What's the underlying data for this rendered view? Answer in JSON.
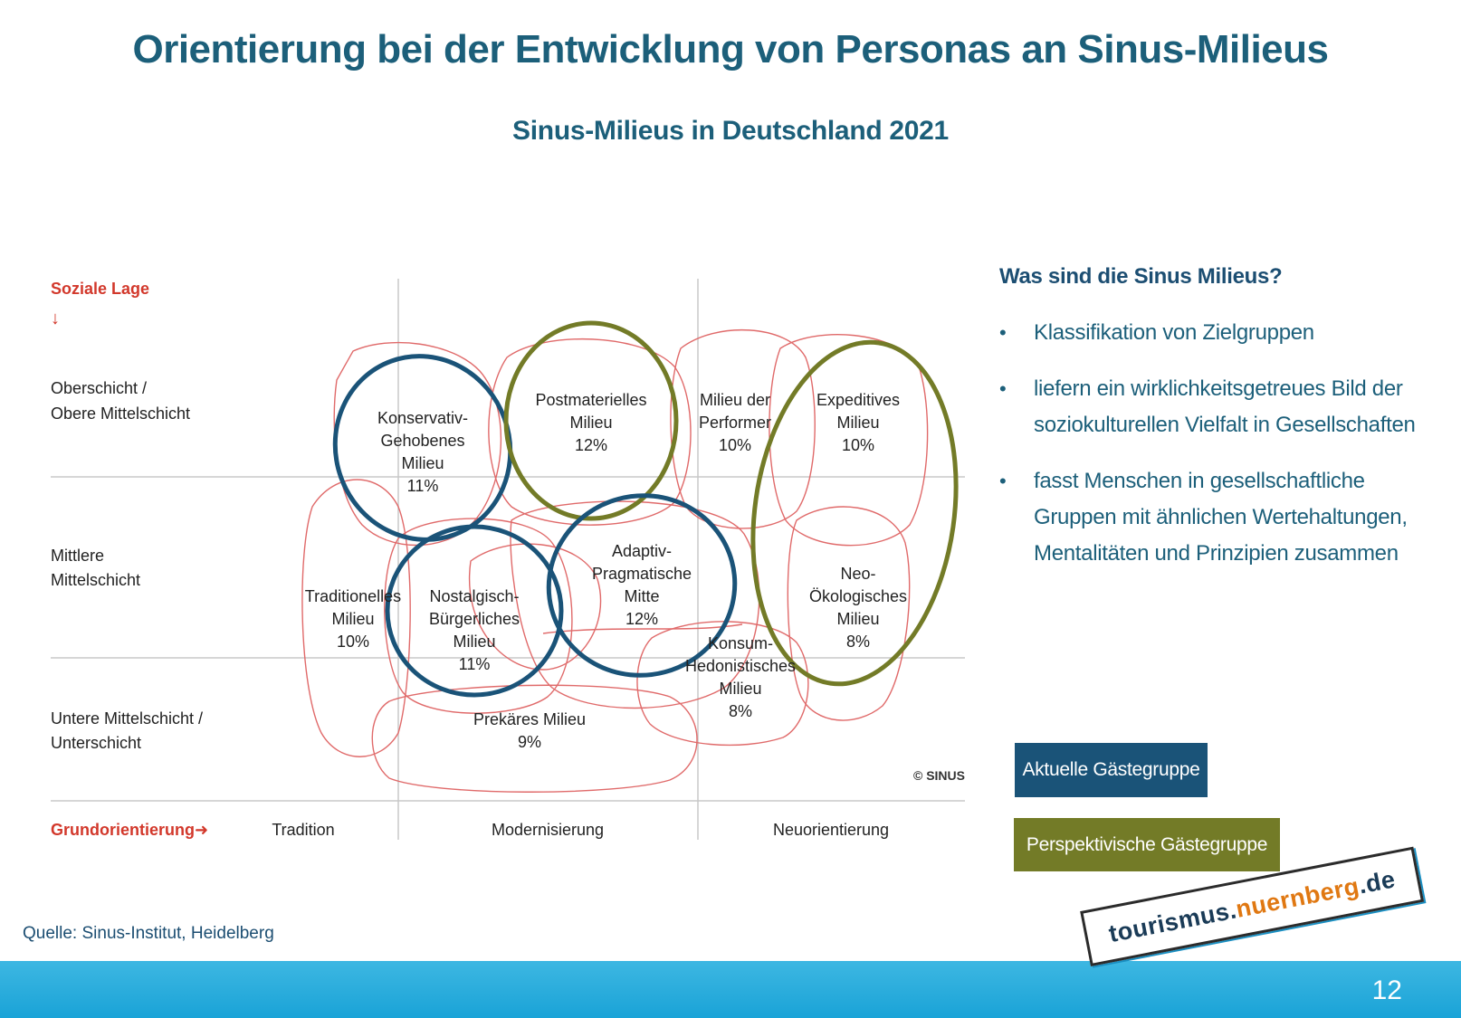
{
  "title": "Orientierung bei der Entwicklung von Personas an Sinus-Milieus",
  "subtitle": "Sinus-Milieus in Deutschland 2021",
  "diagram": {
    "y_axis_title": "Soziale Lage",
    "y_arrow": "↓",
    "rows": [
      {
        "label_line1": "Oberschicht /",
        "label_line2": "Obere Mittelschicht"
      },
      {
        "label_line1": "Mittlere",
        "label_line2": "Mittelschicht"
      },
      {
        "label_line1": "Untere Mittelschicht /",
        "label_line2": "Unterschicht"
      }
    ],
    "x_axis_title": "Grundorientierung",
    "x_arrow": "➜",
    "columns": [
      "Tradition",
      "Modernisierung",
      "Neuorientierung"
    ],
    "copyright": "© SINUS",
    "milieus": [
      {
        "lines": [
          "Konservativ-",
          "Gehobenes",
          "Milieu"
        ],
        "share": "11%",
        "highlight": "current"
      },
      {
        "lines": [
          "Postmaterielles",
          "Milieu"
        ],
        "share": "12%",
        "highlight": "future"
      },
      {
        "lines": [
          "Milieu der",
          "Performer"
        ],
        "share": "10%",
        "highlight": "none"
      },
      {
        "lines": [
          "Expeditives",
          "Milieu"
        ],
        "share": "10%",
        "highlight": "future"
      },
      {
        "lines": [
          "Traditionelles",
          "Milieu"
        ],
        "share": "10%",
        "highlight": "none"
      },
      {
        "lines": [
          "Nostalgisch-",
          "Bürgerliches",
          "Milieu"
        ],
        "share": "11%",
        "highlight": "current"
      },
      {
        "lines": [
          "Adaptiv-",
          "Pragmatische",
          "Mitte"
        ],
        "share": "12%",
        "highlight": "current"
      },
      {
        "lines": [
          "Neo-",
          "Ökologisches",
          "Milieu"
        ],
        "share": "8%",
        "highlight": "future"
      },
      {
        "lines": [
          "Konsum-",
          "Hedonistisches",
          "Milieu"
        ],
        "share": "8%",
        "highlight": "none"
      },
      {
        "lines": [
          "Prekäres Milieu"
        ],
        "share": "9%",
        "highlight": "none"
      }
    ]
  },
  "side": {
    "heading": "Was sind die Sinus Milieus?",
    "bullets": [
      "Klassifikation von Zielgruppen",
      "liefern ein wirklichkeitsgetreues Bild der soziokulturellen Vielfalt in Gesellschaften",
      "fasst Menschen in gesellschaftliche Gruppen mit ähnlichen Wertehaltungen, Mentalitäten und Prinzipien zusammen"
    ]
  },
  "legend": {
    "current_label": "Aktuelle Gästegruppe",
    "future_label": "Perspektivische Gästegruppe"
  },
  "source": "Quelle: Sinus-Institut, Heidelberg",
  "logo": {
    "part1": "tourismus.",
    "part2": "nuernberg",
    "part3": ".de"
  },
  "page_number": "12",
  "colors": {
    "title": "#1c5f7a",
    "axis_accent": "#d2382b",
    "milieu_outline": "#e06a6a",
    "current_group": "#1a5378",
    "future_group": "#737b27",
    "footer_bar": "#1aa3d7"
  }
}
